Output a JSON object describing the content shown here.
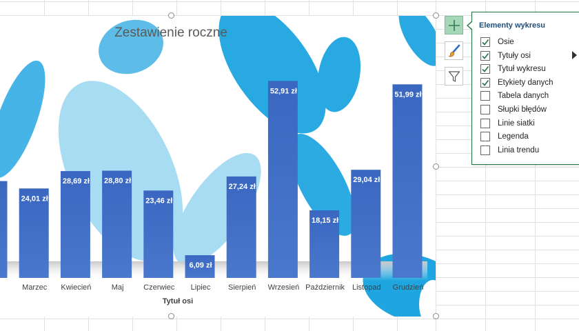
{
  "chart_data": {
    "type": "bar",
    "title": "Zestawienie roczne",
    "xlabel": "Tytuł osi",
    "ylabel": "",
    "ylim": [
      0,
      60
    ],
    "categories": [
      "",
      "Marzec",
      "Kwiecień",
      "Maj",
      "Czerwiec",
      "Lipiec",
      "Sierpień",
      "Wrzesień",
      "Październik",
      "Listopad",
      "Grudzień"
    ],
    "series": [
      {
        "values": [
          26.0,
          24.01,
          28.69,
          28.8,
          23.46,
          6.09,
          27.24,
          52.91,
          18.15,
          29.04,
          51.99
        ]
      }
    ],
    "data_labels": [
      "",
      "24,01 zł",
      "28,69 zł",
      "28,80 zł",
      "23,46 zł",
      "6,09 zł",
      "27,24 zł",
      "52,91 zł",
      "18,15 zł",
      "29,04 zł",
      "51,99 zł"
    ],
    "grid": false,
    "legend": "none",
    "bar_color": "#4472c4"
  },
  "panel": {
    "title": "Elementy wykresu",
    "options": [
      {
        "label": "Osie",
        "checked": true
      },
      {
        "label": "Tytuły osi",
        "checked": true
      },
      {
        "label": "Tytuł wykresu",
        "checked": true
      },
      {
        "label": "Etykiety danych",
        "checked": true
      },
      {
        "label": "Tabela danych",
        "checked": false
      },
      {
        "label": "Słupki błędów",
        "checked": false
      },
      {
        "label": "Linie siatki",
        "checked": false
      },
      {
        "label": "Legenda",
        "checked": false
      },
      {
        "label": "Linia trendu",
        "checked": false
      }
    ]
  },
  "side_buttons": [
    {
      "name": "chart-elements",
      "icon": "plus-icon",
      "active": true
    },
    {
      "name": "chart-styles",
      "icon": "paintbrush-icon",
      "active": false
    },
    {
      "name": "chart-filters",
      "icon": "filter-icon",
      "active": false
    }
  ],
  "colors": {
    "accent": "#217346",
    "panel_title": "#1f4e79",
    "bubble_dark": "#1fa6e0",
    "bubble_light": "#a8dcf2"
  }
}
